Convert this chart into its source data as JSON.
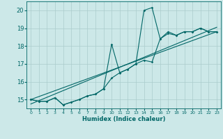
{
  "xlabel": "Humidex (Indice chaleur)",
  "bg_color": "#cce8e8",
  "grid_color": "#aacccc",
  "line_color": "#006666",
  "xlim": [
    -0.5,
    23.5
  ],
  "ylim": [
    14.5,
    20.5
  ],
  "yticks": [
    15,
    16,
    17,
    18,
    19,
    20
  ],
  "xticks": [
    0,
    1,
    2,
    3,
    4,
    5,
    6,
    7,
    8,
    9,
    10,
    11,
    12,
    13,
    14,
    15,
    16,
    17,
    18,
    19,
    20,
    21,
    22,
    23
  ],
  "series1_x": [
    0,
    1,
    2,
    3,
    4,
    5,
    6,
    7,
    8,
    9,
    10,
    11,
    12,
    13,
    14,
    15,
    16,
    17,
    18,
    19,
    20,
    21,
    22,
    23
  ],
  "series1_y": [
    15.0,
    14.9,
    14.9,
    15.1,
    14.7,
    14.85,
    15.0,
    15.2,
    15.3,
    15.6,
    16.2,
    16.5,
    16.7,
    17.0,
    17.2,
    17.1,
    18.4,
    18.7,
    18.6,
    18.8,
    18.8,
    19.0,
    18.8,
    18.8
  ],
  "series2_x": [
    0,
    1,
    2,
    3,
    4,
    5,
    6,
    7,
    8,
    9,
    10,
    11,
    12,
    13,
    14,
    15,
    16,
    17,
    18,
    19,
    20,
    21,
    22,
    23
  ],
  "series2_y": [
    15.0,
    14.9,
    14.9,
    15.1,
    14.7,
    14.85,
    15.0,
    15.2,
    15.3,
    15.6,
    18.1,
    16.5,
    16.7,
    17.0,
    20.0,
    20.15,
    18.4,
    18.8,
    18.6,
    18.8,
    18.8,
    19.0,
    18.8,
    18.8
  ],
  "trend1_x": [
    0,
    23
  ],
  "trend1_y": [
    15.0,
    18.8
  ],
  "trend2_x": [
    0,
    23
  ],
  "trend2_y": [
    14.75,
    19.05
  ]
}
